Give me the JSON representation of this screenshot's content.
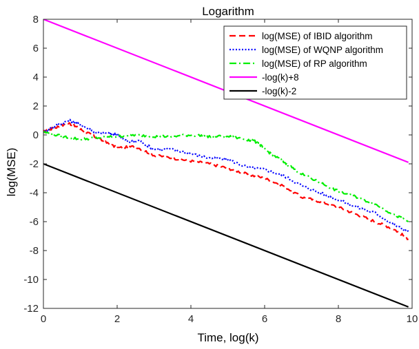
{
  "chart_data": {
    "type": "line",
    "title": "Logarithm",
    "xlabel": "Time, log(k)",
    "ylabel": "log(MSE)",
    "xlim": [
      0,
      10
    ],
    "ylim": [
      -12,
      8
    ],
    "xticks": [
      0,
      2,
      4,
      6,
      8,
      10
    ],
    "yticks": [
      8,
      6,
      4,
      2,
      0,
      -2,
      -4,
      -6,
      -8,
      -10,
      -12
    ],
    "grid": false,
    "legend_position": "top-right",
    "series": [
      {
        "name": "log(MSE) of IBID algorithm",
        "color": "#ff0000",
        "style": "dashed",
        "x": [
          0,
          0.3,
          0.7,
          1.0,
          1.3,
          1.6,
          2.0,
          2.5,
          3.0,
          3.5,
          4.0,
          4.5,
          5.0,
          5.5,
          6.0,
          6.5,
          7.0,
          7.5,
          8.0,
          8.5,
          9.0,
          9.5,
          9.9
        ],
        "y": [
          0.2,
          0.5,
          0.8,
          0.4,
          0.0,
          -0.4,
          -0.9,
          -0.8,
          -1.4,
          -1.6,
          -1.8,
          -2.0,
          -2.3,
          -2.7,
          -3.0,
          -3.5,
          -4.3,
          -4.6,
          -5.0,
          -5.5,
          -6.0,
          -6.5,
          -7.2
        ]
      },
      {
        "name": "log(MSE) of WQNP algorithm",
        "color": "#0000ff",
        "style": "dotted",
        "x": [
          0,
          0.3,
          0.7,
          1.0,
          1.4,
          1.8,
          2.0,
          2.3,
          2.6,
          3.0,
          3.5,
          4.0,
          4.5,
          5.0,
          5.5,
          6.0,
          6.5,
          7.0,
          7.5,
          8.0,
          8.5,
          9.0,
          9.5,
          9.9
        ],
        "y": [
          0.2,
          0.6,
          1.0,
          0.7,
          0.2,
          0.1,
          0.0,
          -0.5,
          -0.4,
          -1.0,
          -1.0,
          -1.3,
          -1.6,
          -1.7,
          -2.2,
          -2.4,
          -2.8,
          -3.5,
          -4.0,
          -4.5,
          -5.0,
          -5.4,
          -6.2,
          -6.7
        ]
      },
      {
        "name": "log(MSE) of RP algorithm",
        "color": "#00ee00",
        "style": "dashdot",
        "x": [
          0,
          0.5,
          1.0,
          1.5,
          2.0,
          2.5,
          3.0,
          3.5,
          4.0,
          4.5,
          5.0,
          5.5,
          5.8,
          6.0,
          6.3,
          6.6,
          7.0,
          7.5,
          8.0,
          8.5,
          9.0,
          9.5,
          9.9
        ],
        "y": [
          0.2,
          -0.1,
          -0.3,
          -0.2,
          -0.1,
          0.0,
          -0.1,
          -0.1,
          0.0,
          -0.1,
          -0.1,
          -0.3,
          -0.5,
          -1.0,
          -1.5,
          -2.0,
          -2.7,
          -3.3,
          -3.9,
          -4.3,
          -4.8,
          -5.5,
          -6.0
        ]
      },
      {
        "name": "-log(k)+8",
        "color": "#ff00ff",
        "style": "solid",
        "x": [
          0,
          9.9
        ],
        "y": [
          8,
          -1.9
        ]
      },
      {
        "name": "-log(k)-2",
        "color": "#000000",
        "style": "solid",
        "x": [
          0,
          9.9
        ],
        "y": [
          -2,
          -11.9
        ]
      }
    ]
  }
}
